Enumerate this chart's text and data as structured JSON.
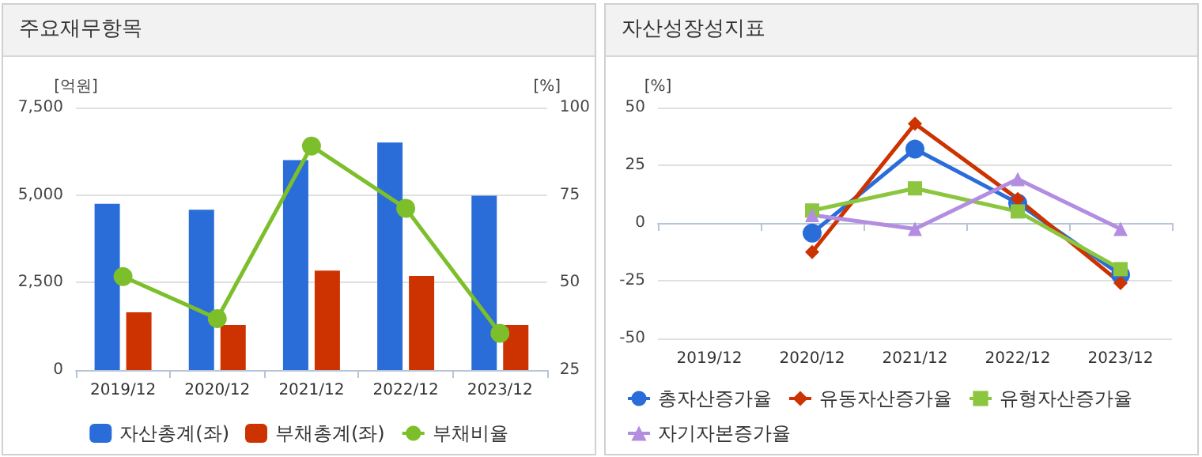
{
  "chart_data": [
    {
      "type": "bar",
      "title": "주요재무항목",
      "categories": [
        "2019/12",
        "2020/12",
        "2021/12",
        "2022/12",
        "2023/12"
      ],
      "ylabel": "[억원]",
      "y2label": "[%]",
      "series": [
        {
          "name": "자산총계(좌)",
          "color": "#2a6dd9",
          "values": [
            4750,
            4580,
            6000,
            6500,
            4980
          ]
        },
        {
          "name": "부채총계(좌)",
          "color": "#cc3300",
          "values": [
            1650,
            1290,
            2840,
            2690,
            1290
          ]
        },
        {
          "name": "부채비율",
          "type": "line",
          "axis": "y2",
          "marker": "circle",
          "color": "#7cbf2a",
          "values": [
            51.7,
            39.7,
            89,
            71.2,
            35.5
          ]
        }
      ],
      "ylim": [
        0,
        7500
      ],
      "yticks": [
        0,
        {
          "value": 2500,
          "label": "2,500"
        },
        {
          "value": 5000,
          "label": "5,000"
        },
        {
          "value": 7500,
          "label": "7,500"
        }
      ],
      "y2lim": [
        25,
        100
      ],
      "y2ticks": [
        25,
        50,
        75,
        100
      ],
      "grid": "y",
      "legend": "bottom"
    },
    {
      "type": "line",
      "title": "자산성장성지표",
      "categories": [
        "2019/12",
        "2020/12",
        "2021/12",
        "2022/12",
        "2023/12"
      ],
      "ylabel": "[%]",
      "series": [
        {
          "name": "총자산증가율",
          "marker": "circle",
          "color": "#2a6dd9",
          "values": [
            null,
            -4.4,
            32,
            8.6,
            -22.4
          ]
        },
        {
          "name": "유동자산증가율",
          "marker": "diamond",
          "color": "#cc3300",
          "values": [
            null,
            -12.6,
            43,
            10.4,
            -26
          ]
        },
        {
          "name": "유형자산증가율",
          "marker": "square",
          "color": "#8cc63f",
          "values": [
            null,
            5.4,
            15,
            5,
            -20
          ]
        },
        {
          "name": "자기자본증가율",
          "marker": "triangle",
          "color": "#b38ee0",
          "values": [
            null,
            3.4,
            -2.6,
            19,
            -2.6
          ]
        }
      ],
      "ylim": [
        -50,
        50
      ],
      "yticks": [
        -50,
        -25,
        0,
        25,
        50
      ],
      "grid": "y",
      "legend": "bottom"
    }
  ]
}
